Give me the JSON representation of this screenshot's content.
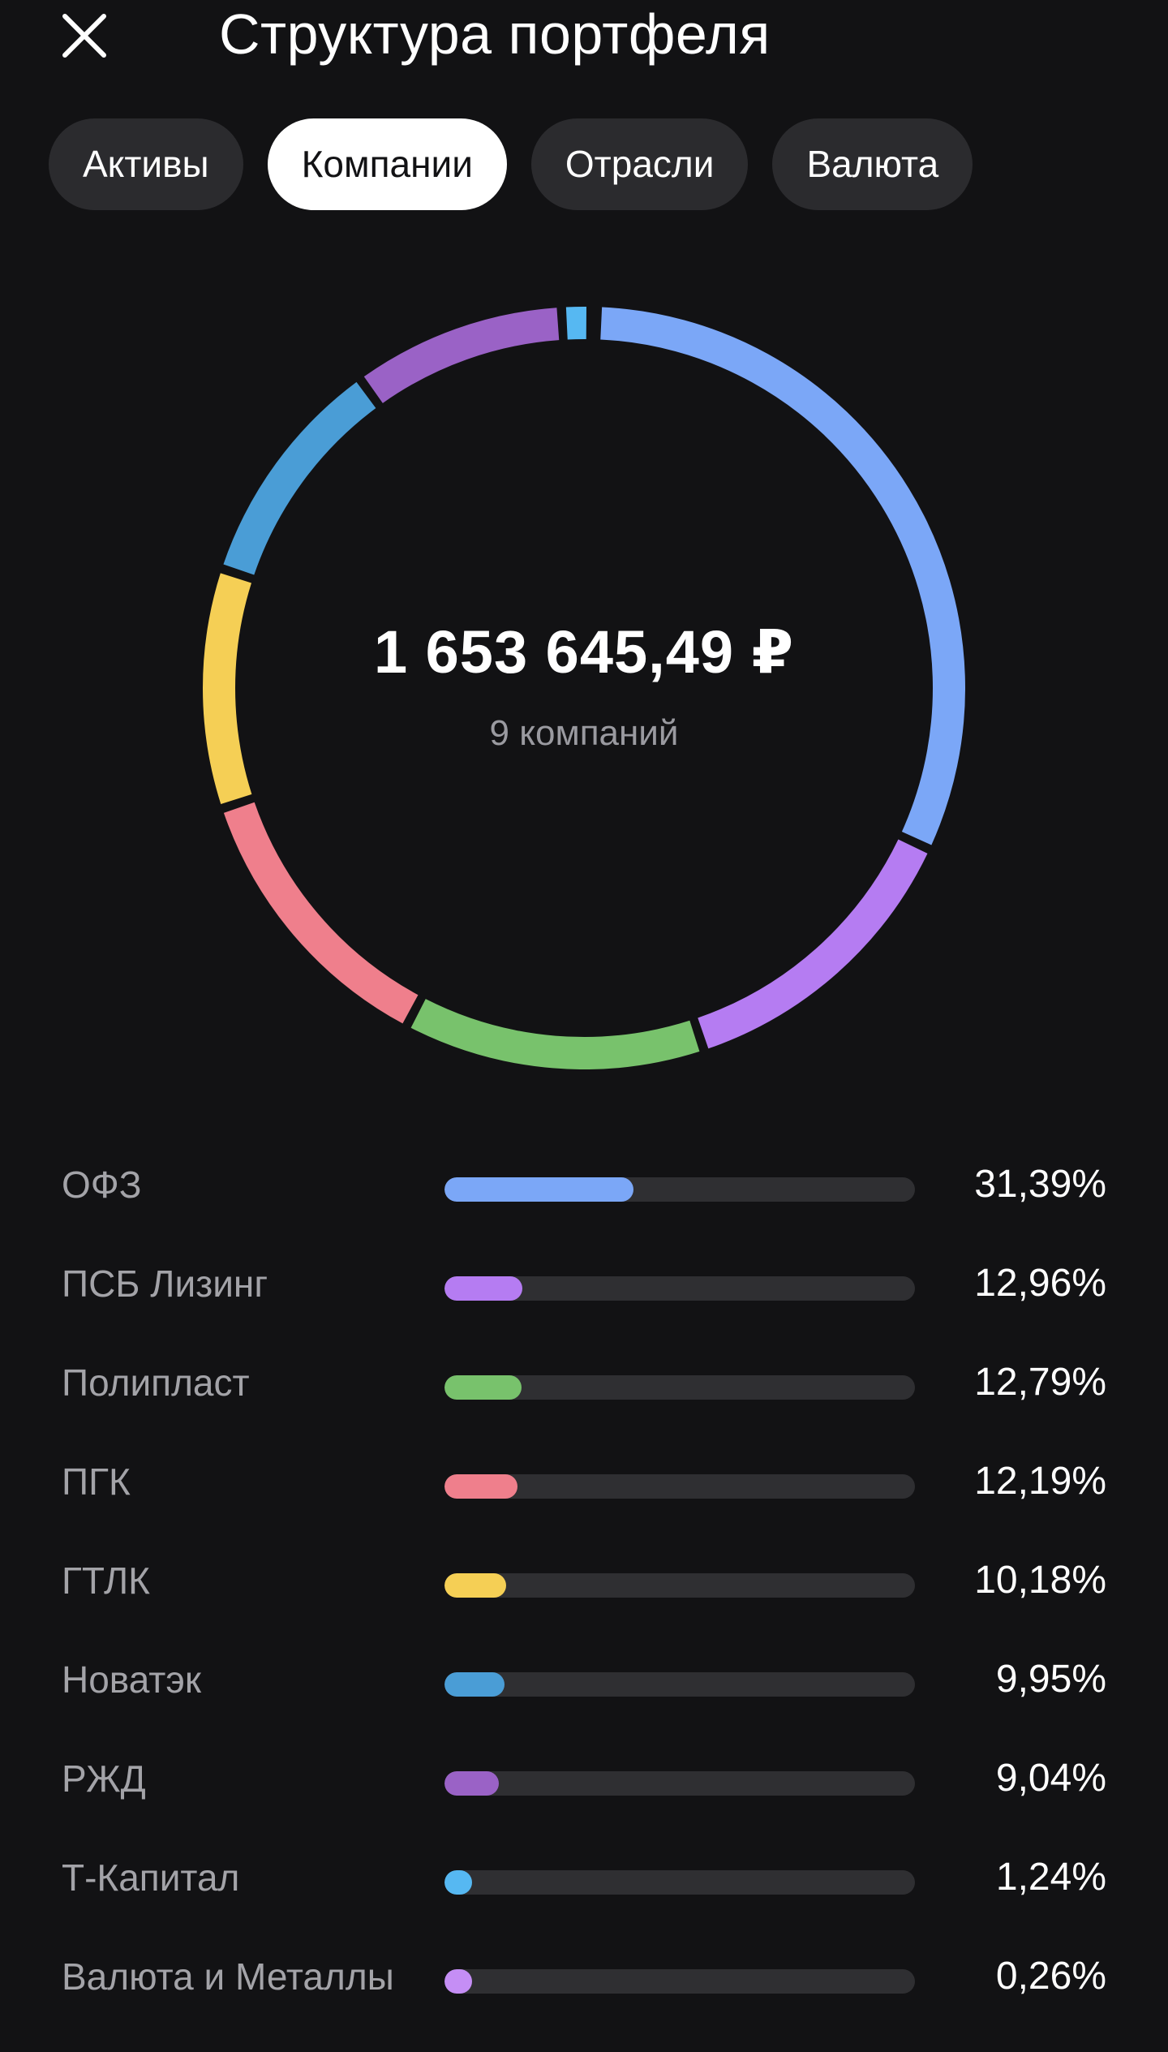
{
  "header": {
    "title": "Структура портфеля",
    "close_icon": "close-icon"
  },
  "tabs": [
    {
      "label": "Активы",
      "active": false
    },
    {
      "label": "Компании",
      "active": true
    },
    {
      "label": "Отрасли",
      "active": false
    },
    {
      "label": "Валюта",
      "active": false
    }
  ],
  "summary": {
    "total": "1 653 645,49 ₽",
    "count_label": "9 компаний"
  },
  "chart_data": {
    "type": "pie",
    "categories": [
      "ОФЗ",
      "ПСБ Лизинг",
      "Полипласт",
      "ПГК",
      "ГТЛК",
      "Новатэк",
      "РЖД",
      "Т-Капитал",
      "Валюта и Металлы"
    ],
    "values": [
      31.39,
      12.96,
      12.79,
      12.19,
      10.18,
      9.95,
      9.04,
      1.24,
      0.26
    ],
    "colors": [
      "#7ba7f7",
      "#b57cf2",
      "#78c26c",
      "#ef7f8c",
      "#f5cf55",
      "#4a9dd6",
      "#9a62c6",
      "#56b8f2",
      "#c58ef5"
    ]
  },
  "rows": [
    {
      "label": "ОФЗ",
      "value": "31,39%",
      "share": 0.3139,
      "color": "#7ba7f7"
    },
    {
      "label": "ПСБ Лизинг",
      "value": "12,96%",
      "share": 0.1296,
      "color": "#b57cf2"
    },
    {
      "label": "Полипласт",
      "value": "12,79%",
      "share": 0.1279,
      "color": "#78c26c"
    },
    {
      "label": "ПГК",
      "value": "12,19%",
      "share": 0.1219,
      "color": "#ef7f8c"
    },
    {
      "label": "ГТЛК",
      "value": "10,18%",
      "share": 0.1018,
      "color": "#f5cf55"
    },
    {
      "label": "Новатэк",
      "value": "9,95%",
      "share": 0.0995,
      "color": "#4a9dd6"
    },
    {
      "label": "РЖД",
      "value": "9,04%",
      "share": 0.0904,
      "color": "#9a62c6"
    },
    {
      "label": "Т-Капитал",
      "value": "1,24%",
      "share": 0.0124,
      "color": "#56b8f2"
    },
    {
      "label": "Валюта и Металлы",
      "value": "0,26%",
      "share": 0.0026,
      "color": "#c58ef5"
    }
  ]
}
